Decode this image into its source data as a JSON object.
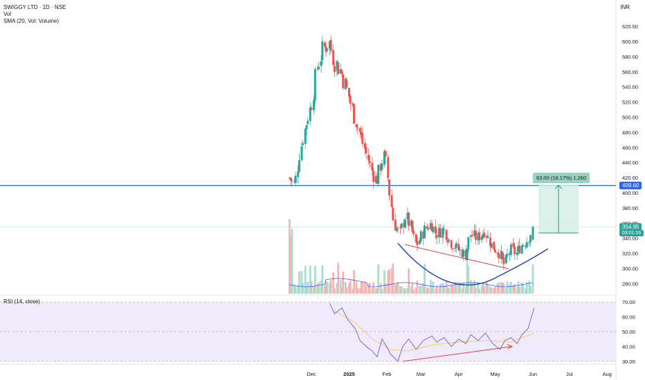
{
  "header": {
    "symbol_title": "SWIGGY LTD · 1D · NSE",
    "vol_label": "Vol",
    "sma_label": "SMA (20, Vol: Volume)",
    "currency": "INR",
    "rsi_label": "RSI (14, close)"
  },
  "price_tags": {
    "resistance": "409.60",
    "current": "354.95",
    "countdown": "03:01:16"
  },
  "measure": {
    "label": "63.00 (18.17%) 1,260"
  },
  "colors": {
    "up": "#26a69a",
    "down": "#ef5350",
    "resistance_line": "#2962ff",
    "cup_curve": "#1e40af",
    "divergence": "#e53950",
    "rsi_line": "#7e57c2",
    "rsi_ma": "#f2c94c",
    "sma_volume": "#2962ff",
    "measure_fill": "#d7f0e8",
    "measure_line": "#1a9c7b"
  },
  "chart_data": [
    {
      "type": "candlestick",
      "title": "SWIGGY LTD · 1D · NSE",
      "x_ticks": [
        "Dec",
        "2025",
        "Feb",
        "Mar",
        "Apr",
        "May",
        "Jun",
        "Jul",
        "Aug"
      ],
      "y_ticks": [
        280,
        300,
        320,
        340,
        360,
        380,
        400,
        420,
        440,
        460,
        480,
        500,
        520,
        540,
        560,
        580,
        600,
        620
      ],
      "ylim": [
        270,
        640
      ],
      "resistance_level": 409.6,
      "current_price": 354.95,
      "measure": {
        "from": 346.95,
        "to": 409.95,
        "change": 63.0,
        "pct": 18.17,
        "bars": 1260
      },
      "close_path": [
        {
          "date": "2024-11-13",
          "close": 420
        },
        {
          "date": "2024-11-18",
          "close": 410
        },
        {
          "date": "2024-11-22",
          "close": 455
        },
        {
          "date": "2024-11-27",
          "close": 490
        },
        {
          "date": "2024-12-02",
          "close": 520
        },
        {
          "date": "2024-12-06",
          "close": 565
        },
        {
          "date": "2024-12-11",
          "close": 590
        },
        {
          "date": "2024-12-16",
          "close": 600
        },
        {
          "date": "2024-12-20",
          "close": 575
        },
        {
          "date": "2024-12-26",
          "close": 560
        },
        {
          "date": "2024-12-31",
          "close": 535
        },
        {
          "date": "2025-01-06",
          "close": 500
        },
        {
          "date": "2025-01-10",
          "close": 480
        },
        {
          "date": "2025-01-15",
          "close": 455
        },
        {
          "date": "2025-01-20",
          "close": 430
        },
        {
          "date": "2025-01-24",
          "close": 415
        },
        {
          "date": "2025-01-28",
          "close": 440
        },
        {
          "date": "2025-01-31",
          "close": 450
        },
        {
          "date": "2025-02-04",
          "close": 395
        },
        {
          "date": "2025-02-07",
          "close": 360
        },
        {
          "date": "2025-02-12",
          "close": 345
        },
        {
          "date": "2025-02-17",
          "close": 370
        },
        {
          "date": "2025-02-21",
          "close": 355
        },
        {
          "date": "2025-02-26",
          "close": 330
        },
        {
          "date": "2025-03-04",
          "close": 350
        },
        {
          "date": "2025-03-10",
          "close": 360
        },
        {
          "date": "2025-03-14",
          "close": 345
        },
        {
          "date": "2025-03-20",
          "close": 352
        },
        {
          "date": "2025-03-26",
          "close": 335
        },
        {
          "date": "2025-04-01",
          "close": 325
        },
        {
          "date": "2025-04-07",
          "close": 318
        },
        {
          "date": "2025-04-11",
          "close": 345
        },
        {
          "date": "2025-04-17",
          "close": 340
        },
        {
          "date": "2025-04-23",
          "close": 350
        },
        {
          "date": "2025-04-29",
          "close": 330
        },
        {
          "date": "2025-05-05",
          "close": 320
        },
        {
          "date": "2025-05-09",
          "close": 305
        },
        {
          "date": "2025-05-14",
          "close": 325
        },
        {
          "date": "2025-05-19",
          "close": 320
        },
        {
          "date": "2025-05-23",
          "close": 330
        },
        {
          "date": "2025-05-28",
          "close": 338
        },
        {
          "date": "2025-06-02",
          "close": 354.95
        }
      ]
    },
    {
      "type": "line",
      "title": "RSI (14, close)",
      "y_ticks": [
        30,
        40,
        50,
        60,
        70
      ],
      "ylim": [
        28,
        72
      ],
      "bands": [
        30,
        70
      ],
      "series": [
        {
          "values": [
            {
              "date": "2024-12-16",
              "rsi": 69
            },
            {
              "date": "2024-12-20",
              "rsi": 62
            },
            {
              "date": "2024-12-26",
              "rsi": 66
            },
            {
              "date": "2024-12-31",
              "rsi": 58
            },
            {
              "date": "2025-01-06",
              "rsi": 52
            },
            {
              "date": "2025-01-10",
              "rsi": 44
            },
            {
              "date": "2025-01-15",
              "rsi": 40
            },
            {
              "date": "2025-01-20",
              "rsi": 37
            },
            {
              "date": "2025-01-24",
              "rsi": 33
            },
            {
              "date": "2025-01-28",
              "rsi": 45
            },
            {
              "date": "2025-01-31",
              "rsi": 41
            },
            {
              "date": "2025-02-04",
              "rsi": 35
            },
            {
              "date": "2025-02-10",
              "rsi": 30
            },
            {
              "date": "2025-02-14",
              "rsi": 40
            },
            {
              "date": "2025-02-19",
              "rsi": 45
            },
            {
              "date": "2025-02-25",
              "rsi": 38
            },
            {
              "date": "2025-03-03",
              "rsi": 44
            },
            {
              "date": "2025-03-10",
              "rsi": 47
            },
            {
              "date": "2025-03-14",
              "rsi": 43
            },
            {
              "date": "2025-03-20",
              "rsi": 46
            },
            {
              "date": "2025-03-26",
              "rsi": 40
            },
            {
              "date": "2025-04-01",
              "rsi": 45
            },
            {
              "date": "2025-04-07",
              "rsi": 42
            },
            {
              "date": "2025-04-11",
              "rsi": 48
            },
            {
              "date": "2025-04-17",
              "rsi": 44
            },
            {
              "date": "2025-04-23",
              "rsi": 49
            },
            {
              "date": "2025-04-29",
              "rsi": 42
            },
            {
              "date": "2025-05-05",
              "rsi": 38
            },
            {
              "date": "2025-05-09",
              "rsi": 44
            },
            {
              "date": "2025-05-14",
              "rsi": 46
            },
            {
              "date": "2025-05-19",
              "rsi": 42
            },
            {
              "date": "2025-05-23",
              "rsi": 48
            },
            {
              "date": "2025-05-28",
              "rsi": 52
            },
            {
              "date": "2025-06-02",
              "rsi": 66
            }
          ]
        },
        {
          "values": [
            {
              "date": "2024-12-20",
              "rsi": 64
            },
            {
              "date": "2025-01-06",
              "rsi": 56
            },
            {
              "date": "2025-01-20",
              "rsi": 45
            },
            {
              "date": "2025-02-04",
              "rsi": 38
            },
            {
              "date": "2025-02-19",
              "rsi": 37
            },
            {
              "date": "2025-03-10",
              "rsi": 41
            },
            {
              "date": "2025-04-01",
              "rsi": 43
            },
            {
              "date": "2025-04-23",
              "rsi": 44
            },
            {
              "date": "2025-05-14",
              "rsi": 43
            },
            {
              "date": "2025-06-02",
              "rsi": 49
            }
          ]
        }
      ]
    }
  ]
}
